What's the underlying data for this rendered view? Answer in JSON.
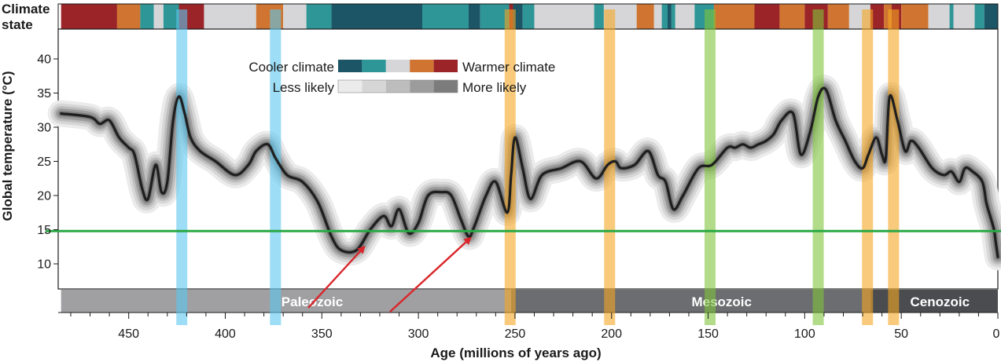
{
  "chart_data": {
    "type": "line",
    "title": "",
    "xlabel": "Age (millions of years ago)",
    "ylabel": "Global temperature (°C)",
    "xlim": [
      485,
      0
    ],
    "ylim": [
      5,
      45
    ],
    "x_ticks": [
      450,
      400,
      350,
      300,
      250,
      200,
      150,
      100,
      50,
      0
    ],
    "y_ticks": [
      10,
      15,
      20,
      25,
      30,
      35,
      40
    ],
    "grid": false,
    "climate_state_title": "Climate state",
    "climate_state_colors": {
      "cold": "#1b5566",
      "cool": "#2e9697",
      "neutral": "#d6d6d8",
      "warm": "#d07531",
      "hot": "#9b2429"
    },
    "climate_state_strip": [
      {
        "from": 485,
        "to": 456,
        "state": "hot"
      },
      {
        "from": 456,
        "to": 444,
        "state": "warm"
      },
      {
        "from": 444,
        "to": 437,
        "state": "cool"
      },
      {
        "from": 437,
        "to": 432,
        "state": "neutral"
      },
      {
        "from": 432,
        "to": 424,
        "state": "cool"
      },
      {
        "from": 424,
        "to": 411,
        "state": "hot"
      },
      {
        "from": 411,
        "to": 384,
        "state": "neutral"
      },
      {
        "from": 384,
        "to": 370,
        "state": "warm"
      },
      {
        "from": 370,
        "to": 358,
        "state": "neutral"
      },
      {
        "from": 358,
        "to": 345,
        "state": "cool"
      },
      {
        "from": 345,
        "to": 298,
        "state": "cold"
      },
      {
        "from": 298,
        "to": 274,
        "state": "cool"
      },
      {
        "from": 274,
        "to": 268,
        "state": "cold"
      },
      {
        "from": 268,
        "to": 253,
        "state": "cool"
      },
      {
        "from": 253,
        "to": 251,
        "state": "hot"
      },
      {
        "from": 251,
        "to": 246,
        "state": "cold"
      },
      {
        "from": 246,
        "to": 240,
        "state": "cool"
      },
      {
        "from": 240,
        "to": 209,
        "state": "neutral"
      },
      {
        "from": 209,
        "to": 204,
        "state": "cool"
      },
      {
        "from": 204,
        "to": 187,
        "state": "neutral"
      },
      {
        "from": 187,
        "to": 178,
        "state": "warm"
      },
      {
        "from": 178,
        "to": 174,
        "state": "neutral"
      },
      {
        "from": 174,
        "to": 171,
        "state": "cool"
      },
      {
        "from": 171,
        "to": 169,
        "state": "cold"
      },
      {
        "from": 169,
        "to": 167,
        "state": "cool"
      },
      {
        "from": 167,
        "to": 157,
        "state": "neutral"
      },
      {
        "from": 157,
        "to": 147,
        "state": "cool"
      },
      {
        "from": 147,
        "to": 126,
        "state": "warm"
      },
      {
        "from": 126,
        "to": 113,
        "state": "hot"
      },
      {
        "from": 113,
        "to": 100,
        "state": "warm"
      },
      {
        "from": 100,
        "to": 88,
        "state": "hot"
      },
      {
        "from": 88,
        "to": 77,
        "state": "warm"
      },
      {
        "from": 77,
        "to": 66,
        "state": "neutral"
      },
      {
        "from": 66,
        "to": 59,
        "state": "hot"
      },
      {
        "from": 59,
        "to": 55,
        "state": "warm"
      },
      {
        "from": 55,
        "to": 50,
        "state": "hot"
      },
      {
        "from": 50,
        "to": 36,
        "state": "warm"
      },
      {
        "from": 36,
        "to": 25,
        "state": "neutral"
      },
      {
        "from": 25,
        "to": 23,
        "state": "cool"
      },
      {
        "from": 23,
        "to": 12,
        "state": "neutral"
      },
      {
        "from": 12,
        "to": 7,
        "state": "cool"
      },
      {
        "from": 7,
        "to": 0,
        "state": "cold"
      }
    ],
    "legend": {
      "cooler_label": "Cooler climate",
      "warmer_label": "Warmer climate",
      "less_label": "Less likely",
      "more_label": "More likely",
      "likelihood_colors": [
        "#ebebeb",
        "#d6d6d6",
        "#bdbdbd",
        "#9c9c9c",
        "#7c7c7c"
      ]
    },
    "eras": [
      {
        "name": "Paleozoic",
        "from": 485,
        "to": 252,
        "color": "#a0a0a2"
      },
      {
        "name": "Mesozoic",
        "from": 252,
        "to": 66,
        "color": "#6b6d70"
      },
      {
        "name": "Cenozoic",
        "from": 66,
        "to": 0,
        "color": "#4a4c4f"
      }
    ],
    "series": [
      {
        "color": "#1e1e1e",
        "x": [
          485,
          470,
          465,
          460,
          455,
          450,
          447,
          443,
          440,
          436,
          433,
          430,
          427,
          424,
          421,
          418,
          413,
          405,
          395,
          388,
          384,
          378,
          374,
          368,
          360,
          352,
          345,
          340,
          332,
          325,
          318,
          314,
          310,
          305,
          300,
          295,
          288,
          283,
          278,
          274,
          271,
          265,
          260,
          254,
          252,
          250,
          246,
          242,
          236,
          226,
          216,
          208,
          202,
          198,
          195,
          188,
          181,
          176,
          172,
          168,
          163,
          155,
          148,
          140,
          136,
          132,
          128,
          124,
          120,
          116,
          112,
          106,
          102,
          97,
          93,
          89,
          84,
          79,
          74,
          70,
          67,
          63,
          60,
          58,
          56,
          52,
          48,
          45,
          41,
          34,
          28,
          24,
          20,
          17,
          13,
          8,
          6,
          4,
          2,
          1,
          0
        ],
        "values": [
          32,
          31.5,
          30.5,
          31,
          28.5,
          27,
          26,
          21,
          19.5,
          24.5,
          20.5,
          22,
          31,
          34.5,
          32,
          28.5,
          26.5,
          25,
          23,
          24.5,
          26.5,
          27.5,
          25.5,
          23,
          22,
          19,
          14,
          12,
          12,
          15,
          17,
          15.5,
          18,
          14.5,
          16,
          20,
          20.5,
          20,
          16.5,
          14,
          15.5,
          20,
          22,
          17.5,
          23,
          28.5,
          24,
          19.5,
          23,
          24,
          25,
          22.5,
          24.5,
          25,
          24,
          24.5,
          26.5,
          23,
          22,
          18,
          20,
          24,
          24.5,
          27,
          27,
          27.5,
          27,
          27.5,
          28,
          29,
          31,
          32,
          26,
          29.5,
          34.5,
          35.5,
          31,
          28,
          25,
          24,
          26,
          28.5,
          26,
          25.5,
          34.5,
          31,
          26.5,
          28,
          27,
          24,
          23,
          23.5,
          22,
          24,
          23.5,
          22,
          19,
          17,
          15,
          13,
          11
        ]
      }
    ],
    "reference_line": {
      "y": 14.8,
      "color": "#2aa845"
    },
    "highlight_bands": [
      {
        "x": 422.5,
        "color": "#5cc6ee"
      },
      {
        "x": 374,
        "color": "#5cc6ee"
      },
      {
        "x": 252.5,
        "color": "#f5a623"
      },
      {
        "x": 201,
        "color": "#f5a623"
      },
      {
        "x": 149,
        "color": "#7ec43b"
      },
      {
        "x": 93,
        "color": "#7ec43b"
      },
      {
        "x": 67.5,
        "color": "#f5a623"
      },
      {
        "x": 54,
        "color": "#f5a623"
      }
    ],
    "annotation_arrows": [
      {
        "to_x": 328,
        "to_y": 12.5,
        "color": "#d9262b"
      },
      {
        "to_x": 273,
        "to_y": 13.8,
        "color": "#d9262b"
      }
    ]
  }
}
